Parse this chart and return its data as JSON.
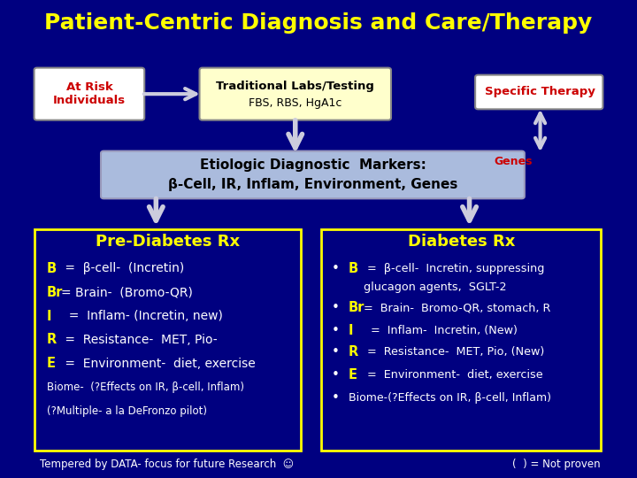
{
  "title": "Patient-Centric Diagnosis and Care/Therapy",
  "bg_color": "#000080",
  "title_color": "#FFFF00",
  "at_risk_text": "At Risk\nIndividuals",
  "at_risk_text_color": "#CC0000",
  "at_risk_box_color": "#FFFFFF",
  "trad_labs_title": "Traditional Labs/Testing",
  "trad_labs_subtitle": "FBS, RBS, HgA1c",
  "trad_labs_box_color": "#FFFFCC",
  "specific_therapy_text": "Specific Therapy",
  "specific_therapy_color": "#CC0000",
  "specific_therapy_box_color": "#FFFFFF",
  "genes_text": "Genes",
  "genes_color": "#CC0000",
  "etiologic_box_color": "#AABBDD",
  "pre_diabetes_title": "Pre-Diabetes Rx",
  "diabetes_title": "Diabetes Rx",
  "footer_left": "Tempered by DATA- focus for future Research  ☺",
  "footer_right": "(  ) = Not proven",
  "footer_color": "#FFFFFF",
  "box_title_color": "#FFFF00",
  "box_text_color": "#FFFFFF",
  "box_border_color": "#FFFF00",
  "arrow_color": "#CCCCDD"
}
